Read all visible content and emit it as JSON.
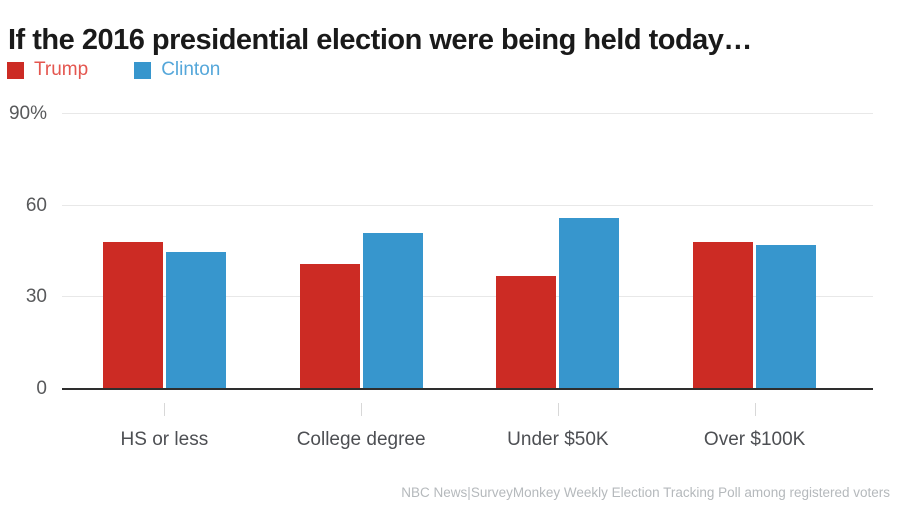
{
  "title": "If the 2016 presidential election were being held today…",
  "footer": {
    "source": "NBC News|SurveyMonkey Weekly Election Tracking Poll among registered voters"
  },
  "colors": {
    "trump": "#cc2b24",
    "clinton": "#3796cd",
    "trump_text": "#e4564f",
    "clinton_text": "#55a7da",
    "title_text": "#1a1a1a",
    "y_label": "#58595b",
    "x_label": "#4d4f53",
    "gridline": "#e8e8e8",
    "axis_line": "#2e2e2e",
    "tick": "#d8d8d8",
    "footer_text": "#b5b9bc"
  },
  "chart_data": {
    "type": "bar",
    "title": "If the 2016 presidential election were being held today…",
    "categories": [
      "HS or less",
      "College degree",
      "Under $50K",
      "Over $100K"
    ],
    "series": [
      {
        "name": "Trump",
        "color_key": "trump",
        "values": [
          48,
          41,
          37,
          48
        ]
      },
      {
        "name": "Clinton",
        "color_key": "clinton",
        "values": [
          45,
          51,
          56,
          47
        ]
      }
    ],
    "ylabel": "",
    "xlabel": "",
    "ylim": [
      0,
      90
    ],
    "yticks": [
      {
        "value": 90,
        "label": "90%"
      },
      {
        "value": 60,
        "label": "60"
      },
      {
        "value": 30,
        "label": "30"
      },
      {
        "value": 0,
        "label": "0"
      }
    ],
    "grid": "horizontal",
    "legend_position": "top-left",
    "value_unit": "percent of registered voters"
  }
}
